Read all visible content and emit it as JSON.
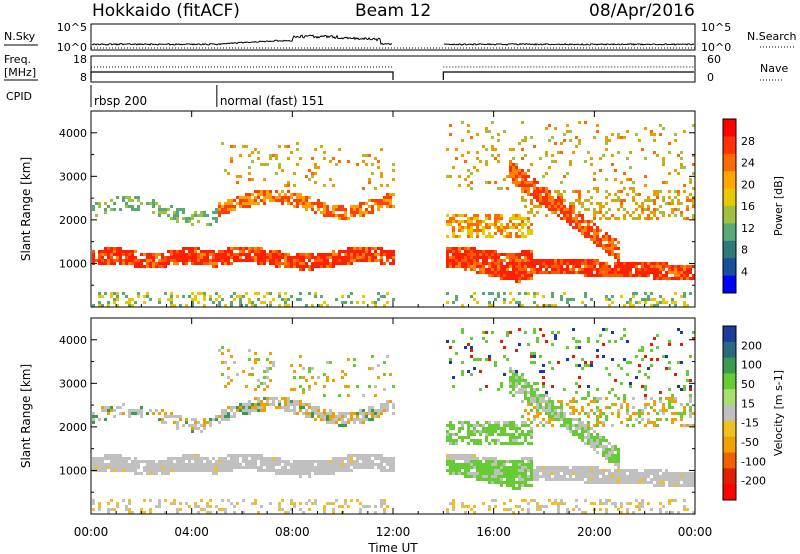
{
  "header": {
    "radar": "Hokkaido (fitACF)",
    "beam": "Beam 12",
    "date": "08/Apr/2016"
  },
  "chart_data": {
    "type": "heatmap",
    "time_axis": {
      "label": "Time UT",
      "ticks": [
        "00:00",
        "04:00",
        "08:00",
        "12:00",
        "16:00",
        "20:00",
        "00:00"
      ],
      "range_hours": [
        0,
        24
      ]
    },
    "noise_panel": {
      "left_label": "N.Sky",
      "right_label": "N.Search",
      "left_ticks": [
        "10^5",
        "10^0"
      ],
      "right_ticks": [
        "10^5",
        "10^0"
      ]
    },
    "freq_panel": {
      "left_label_line1": "Freq.",
      "left_label_line2": "[MHz]",
      "right_label": "Nave",
      "left_ticks": [
        "18",
        "8"
      ],
      "right_ticks": [
        "60",
        "0"
      ]
    },
    "cpid": {
      "label": "CPID",
      "segments": [
        {
          "start_hour": 0,
          "end_hour": 5,
          "text": "rbsp 200"
        },
        {
          "start_hour": 5,
          "end_hour": 24,
          "text": "normal (fast) 151"
        }
      ]
    },
    "data_gap_hours": [
      12,
      14
    ],
    "power_panel": {
      "ylabel": "Slant Range [km]",
      "yticks": [
        1000,
        2000,
        3000,
        4000
      ],
      "ylim": [
        0,
        4500
      ],
      "colorbar_label": "Power [dB]",
      "colorbar_ticks": [
        "28",
        "24",
        "20",
        "16",
        "12",
        "8",
        "4"
      ],
      "colorbar_colors": [
        "#ff0000",
        "#ff3000",
        "#ff6a00",
        "#ffa600",
        "#e8c800",
        "#a0c040",
        "#58a878",
        "#2e7a78",
        "#1850a0",
        "#0000ff"
      ]
    },
    "velocity_panel": {
      "ylabel": "Slant Range [km]",
      "yticks": [
        1000,
        2000,
        3000,
        4000
      ],
      "ylim": [
        0,
        4500
      ],
      "colorbar_label": "Velocity [m s-1]",
      "colorbar_ticks": [
        "200",
        "100",
        "50",
        "15",
        "-15",
        "-50",
        "-100",
        "-200"
      ],
      "colorbar_colors": [
        "#1a3c9c",
        "#2a6a80",
        "#3a9a50",
        "#66cc33",
        "#a8e070",
        "#c0c0c0",
        "#f0c020",
        "#f0a000",
        "#f06000",
        "#e02000",
        "#ff0000"
      ],
      "ground_scatter_color": "#c0c0c0"
    }
  }
}
